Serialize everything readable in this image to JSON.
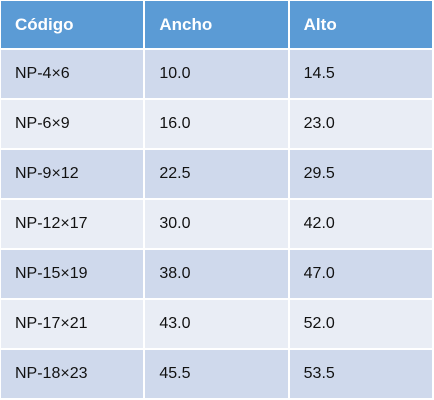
{
  "table": {
    "header": [
      "Código",
      "Ancho",
      "Alto"
    ],
    "rows": [
      [
        "NP-4×6",
        "10.0",
        "14.5"
      ],
      [
        "NP-6×9",
        "16.0",
        "23.0"
      ],
      [
        "NP-9×12",
        "22.5",
        "29.5"
      ],
      [
        "NP-12×17",
        "30.0",
        "42.0"
      ],
      [
        "NP-15×19",
        "38.0",
        "47.0"
      ],
      [
        "NP-17×21",
        "43.0",
        "52.0"
      ],
      [
        "NP-18×23",
        "45.5",
        "53.5"
      ]
    ]
  }
}
